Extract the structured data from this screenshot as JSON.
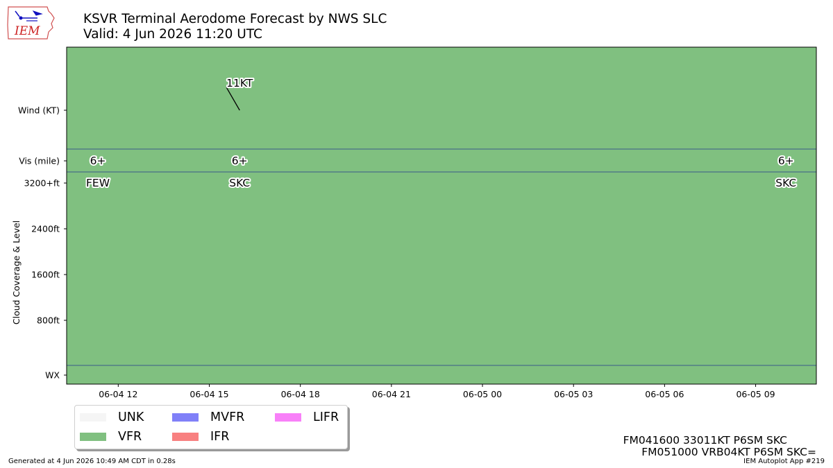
{
  "logo": {
    "text": "IEM",
    "color": "#cc2222"
  },
  "title": {
    "line1": "KSVR Terminal Aerodome Forecast by NWS SLC",
    "line2": "Valid: 4 Jun 2026 11:20 UTC"
  },
  "colors": {
    "vfr_fill": "#80c080",
    "frame": "#000000",
    "band_line": "#3a5a8a"
  },
  "chart_data": {
    "type": "timeline",
    "ylabel": "Cloud Coverage & Level",
    "y_rows": [
      "Wind (KT)",
      "Vis (mile)",
      "3200+ft",
      "2400ft",
      "1600ft",
      "800ft",
      "WX"
    ],
    "x_ticks": [
      {
        "label": "06-04 12",
        "hours": 12
      },
      {
        "label": "06-04 15",
        "hours": 15
      },
      {
        "label": "06-04 18",
        "hours": 18
      },
      {
        "label": "06-04 21",
        "hours": 21
      },
      {
        "label": "06-05 00",
        "hours": 24
      },
      {
        "label": "06-05 03",
        "hours": 27
      },
      {
        "label": "06-05 06",
        "hours": 30
      },
      {
        "label": "06-05 09",
        "hours": 33
      }
    ],
    "xlim_hours": [
      10.3,
      35.0
    ],
    "flight_category": "VFR",
    "forecasts": [
      {
        "hours": 11.33,
        "vis": "6+",
        "sky": "FEW",
        "wind_label": "",
        "wind_dir": null
      },
      {
        "hours": 16.0,
        "vis": "6+",
        "sky": "SKC",
        "wind_label": "11KT",
        "wind_dir": 330
      },
      {
        "hours": 34.0,
        "vis": "6+",
        "sky": "SKC",
        "wind_label": "",
        "wind_dir": null
      }
    ]
  },
  "legend": [
    {
      "label": "UNK",
      "color": "#f5f5f5"
    },
    {
      "label": "VFR",
      "color": "#80c080"
    },
    {
      "label": "MVFR",
      "color": "#8080f8"
    },
    {
      "label": "IFR",
      "color": "#f88080"
    },
    {
      "label": "LIFR",
      "color": "#f880f8"
    }
  ],
  "taf_text": {
    "line1": "FM041600 33011KT P6SM SKC",
    "line2": "FM051000 VRB04KT P6SM SKC="
  },
  "footer": {
    "generated": "Generated at 4 Jun 2026 10:49 AM CDT in 0.28s",
    "app": "IEM Autoplot App #219"
  }
}
